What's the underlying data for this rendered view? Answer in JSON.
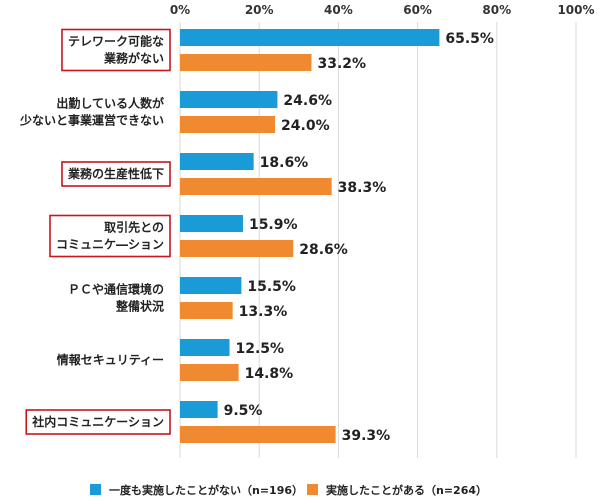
{
  "chart_data": {
    "type": "bar",
    "orientation": "horizontal",
    "xlim": [
      0,
      100
    ],
    "x_ticks": [
      "0%",
      "20%",
      "40%",
      "60%",
      "80%",
      "100%"
    ],
    "x_tick_values": [
      0,
      20,
      40,
      60,
      80,
      100
    ],
    "grid": true,
    "legend_position": "bottom",
    "categories": [
      {
        "lines": [
          "テレワーク可能な",
          "業務がない"
        ],
        "highlighted": true
      },
      {
        "lines": [
          "出勤している人数が",
          "少ないと事業運営できない"
        ],
        "highlighted": false
      },
      {
        "lines": [
          "業務の生産性低下"
        ],
        "highlighted": true
      },
      {
        "lines": [
          "取引先との",
          "コミュニケ―ション"
        ],
        "highlighted": true
      },
      {
        "lines": [
          "ＰＣや通信環境の",
          "整備状況"
        ],
        "highlighted": false
      },
      {
        "lines": [
          "情報セキュリティー"
        ],
        "highlighted": false
      },
      {
        "lines": [
          "社内コミュニケーション"
        ],
        "highlighted": true
      }
    ],
    "series": [
      {
        "name": "一度も実施したことがない（n=196）",
        "color": "#1a9ad6",
        "values": [
          65.5,
          24.6,
          18.6,
          15.9,
          15.5,
          12.5,
          9.5
        ],
        "labels": [
          "65.5%",
          "24.6%",
          "18.6%",
          "15.9%",
          "15.5%",
          "12.5%",
          "9.5%"
        ]
      },
      {
        "name": "実施したことがある（n=264）",
        "color": "#f08a30",
        "values": [
          33.2,
          24.0,
          38.3,
          28.6,
          13.3,
          14.8,
          39.3
        ],
        "labels": [
          "33.2%",
          "24.0%",
          "38.3%",
          "28.6%",
          "13.3%",
          "14.8%",
          "39.3%"
        ]
      }
    ]
  }
}
